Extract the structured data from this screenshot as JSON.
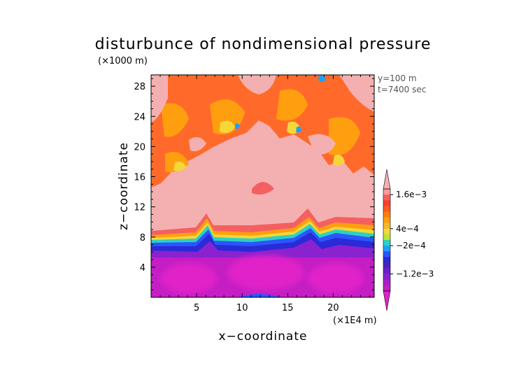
{
  "chart_data": {
    "type": "heatmap",
    "title": "disturbunce of nondimensional pressure",
    "y_unit_label": "(×1000 m)",
    "x_unit_label": "(×1E4 m)",
    "xlabel": "x−coordinate",
    "ylabel": "z−coordinate",
    "info_lines": [
      "y=100  m",
      "t=7400  sec"
    ],
    "xlim": [
      0,
      24.5
    ],
    "ylim": [
      0,
      29.5
    ],
    "x_ticks": [
      5,
      10,
      15,
      20
    ],
    "x_tick_labels": [
      "5",
      "10",
      "15",
      "20"
    ],
    "y_ticks": [
      4,
      8,
      12,
      16,
      20,
      24,
      28
    ],
    "y_tick_labels": [
      "4",
      "8",
      "12",
      "16",
      "20",
      "24",
      "28"
    ],
    "colorbar_labels": [
      {
        "value": 0.0016,
        "text": "1.6e−3"
      },
      {
        "value": 0.0004,
        "text": "4e−4"
      },
      {
        "value": -0.0002,
        "text": "−2e−4"
      },
      {
        "value": -0.0012,
        "text": "−1.2e−3"
      }
    ],
    "levels": [
      {
        "min": 0.0018,
        "max": null,
        "color": "#f4b0b0"
      },
      {
        "min": 0.0016,
        "max": 0.0018,
        "color": "#ff9a9a"
      },
      {
        "min": 0.0014,
        "max": 0.0016,
        "color": "#f46060"
      },
      {
        "min": 0.0012,
        "max": 0.0014,
        "color": "#ff3b30"
      },
      {
        "min": 0.001,
        "max": 0.0012,
        "color": "#ff5a1e"
      },
      {
        "min": 0.0008,
        "max": 0.001,
        "color": "#ff7f0e"
      },
      {
        "min": 0.0006,
        "max": 0.0008,
        "color": "#ff9f10"
      },
      {
        "min": 0.0004,
        "max": 0.0006,
        "color": "#f5b82a"
      },
      {
        "min": 0.0002,
        "max": 0.0004,
        "color": "#f5d73a"
      },
      {
        "min": 0.0,
        "max": 0.0002,
        "color": "#b8e63a"
      },
      {
        "min": -0.0002,
        "max": 0.0,
        "color": "#2ed0c2"
      },
      {
        "min": -0.0004,
        "max": -0.0002,
        "color": "#1ea0ff"
      },
      {
        "min": -0.0006,
        "max": -0.0004,
        "color": "#2a55ff"
      },
      {
        "min": -0.0008,
        "max": -0.0006,
        "color": "#2a2ad6"
      },
      {
        "min": -0.001,
        "max": -0.0008,
        "color": "#4a22b8"
      },
      {
        "min": -0.0012,
        "max": -0.001,
        "color": "#6a22c8"
      },
      {
        "min": -0.0014,
        "max": -0.0012,
        "color": "#8a22d0"
      },
      {
        "min": -0.0016,
        "max": -0.0014,
        "color": "#a820c8"
      },
      {
        "min": -0.0018,
        "max": -0.0016,
        "color": "#c41ec4"
      },
      {
        "min": null,
        "max": -0.0018,
        "color": "#e024c8"
      }
    ],
    "regions": [
      {
        "kind": "band",
        "z_range": [
          0,
          6.5
        ],
        "level": "-1.6e-3 to -1.2e-3 (magenta/purple)"
      },
      {
        "kind": "band",
        "z_range": [
          6.5,
          9.5
        ],
        "level": "transition -1e-3 to 1.4e-3 (blue to red)"
      },
      {
        "kind": "band",
        "z_range": [
          9.5,
          15
        ],
        "level": "above 1.8e-3 (light pink)"
      },
      {
        "kind": "band",
        "z_range": [
          15,
          29.5
        ],
        "level": "mixed 2e-4 to 1.8e-3 (orange/red patches)"
      }
    ],
    "grid": false,
    "legend": "right colorbar"
  }
}
